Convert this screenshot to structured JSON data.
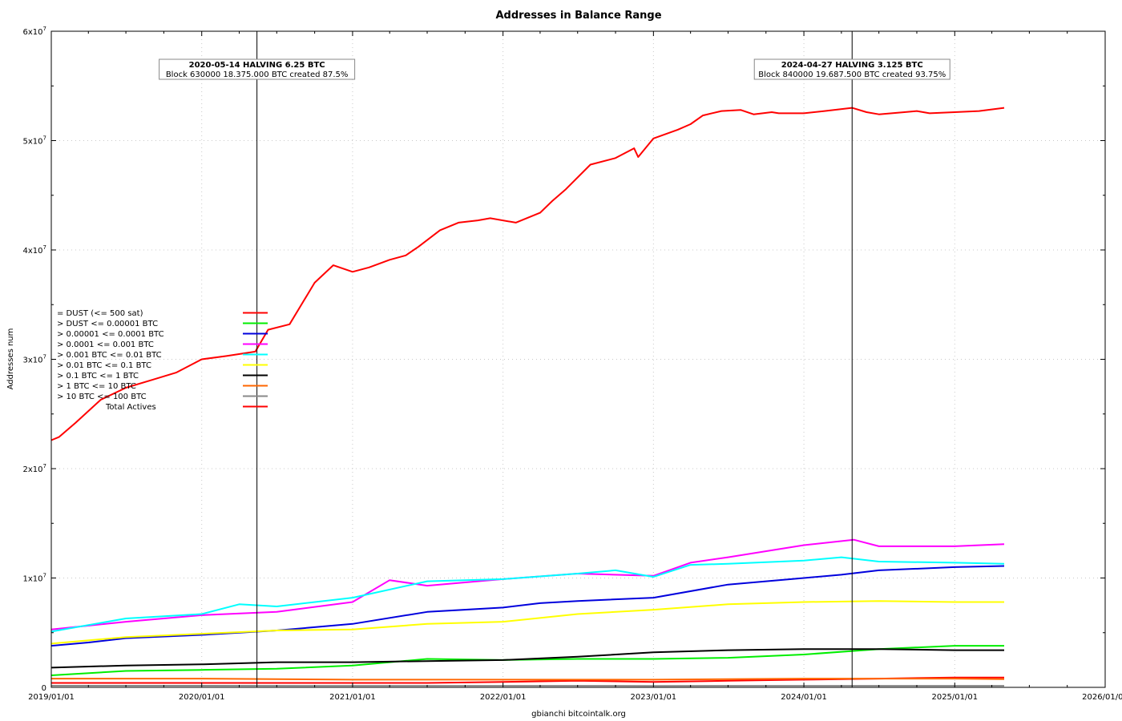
{
  "chart_data": {
    "type": "line",
    "title": "Addresses in Balance Range",
    "xlabel": "gbianchi bitcointalk.org",
    "ylabel": "Addresses num",
    "xlim": [
      "2019-01-01",
      "2026-01-01"
    ],
    "ylim": [
      0,
      60000000
    ],
    "x_ticks": [
      "2019/01/01",
      "2020/01/01",
      "2021/01/01",
      "2022/01/01",
      "2023/01/01",
      "2024/01/01",
      "2025/01/01",
      "2026/01/01"
    ],
    "y_ticks": [
      {
        "value": 0,
        "label": "0"
      },
      {
        "value": 10000000,
        "label": "1x10",
        "exp": "7"
      },
      {
        "value": 20000000,
        "label": "2x10",
        "exp": "7"
      },
      {
        "value": 30000000,
        "label": "3x10",
        "exp": "7"
      },
      {
        "value": 40000000,
        "label": "4x10",
        "exp": "7"
      },
      {
        "value": 50000000,
        "label": "5x10",
        "exp": "7"
      },
      {
        "value": 60000000,
        "label": "6x10",
        "exp": "7"
      }
    ],
    "grid": true,
    "legend_position": "left",
    "annotations": [
      {
        "date": "2020-05-14",
        "line1": "2020-05-14 HALVING 6.25 BTC",
        "line2": "Block 630000 18.375.000 BTC created 87.5%"
      },
      {
        "date": "2024-04-27",
        "line1": "2024-04-27 HALVING 3.125 BTC",
        "line2": "Block 840000 19.687.500 BTC created 93.75%"
      }
    ],
    "series": [
      {
        "name": "= DUST (<= 500 sat)",
        "color": "#ff0000",
        "x": [
          "2019-01-01",
          "2019-07-01",
          "2020-01-01",
          "2020-07-01",
          "2021-01-01",
          "2021-07-01",
          "2022-01-01",
          "2022-07-01",
          "2023-01-01",
          "2023-07-01",
          "2024-01-01",
          "2024-07-01",
          "2025-01-01",
          "2025-05-01"
        ],
        "y": [
          400000,
          400000,
          400000,
          400000,
          400000,
          400000,
          500000,
          600000,
          500000,
          600000,
          700000,
          800000,
          900000,
          900000
        ]
      },
      {
        "name": "> DUST <= 0.00001 BTC",
        "color": "#00ee00",
        "x": [
          "2019-01-01",
          "2019-07-01",
          "2020-01-01",
          "2020-07-01",
          "2021-01-01",
          "2021-07-01",
          "2022-01-01",
          "2022-07-01",
          "2023-01-01",
          "2023-07-01",
          "2024-01-01",
          "2024-07-01",
          "2025-01-01",
          "2025-05-01"
        ],
        "y": [
          1100000,
          1500000,
          1600000,
          1700000,
          2000000,
          2600000,
          2500000,
          2600000,
          2600000,
          2700000,
          3000000,
          3500000,
          3800000,
          3800000
        ]
      },
      {
        "name": "> 0.00001 <= 0.0001 BTC",
        "color": "#0000dd",
        "x": [
          "2019-01-01",
          "2019-04-01",
          "2019-07-01",
          "2020-01-01",
          "2020-07-01",
          "2021-01-01",
          "2021-07-01",
          "2022-01-01",
          "2022-04-01",
          "2022-07-01",
          "2023-01-01",
          "2023-07-01",
          "2024-01-01",
          "2024-04-01",
          "2024-07-01",
          "2025-01-01",
          "2025-05-01"
        ],
        "y": [
          3800000,
          4100000,
          4500000,
          4800000,
          5200000,
          5800000,
          6900000,
          7300000,
          7700000,
          7900000,
          8200000,
          9400000,
          10000000,
          10300000,
          10700000,
          11000000,
          11100000
        ]
      },
      {
        "name": "> 0.0001 <= 0.001 BTC",
        "color": "#ff00ff",
        "x": [
          "2019-01-01",
          "2019-07-01",
          "2020-01-01",
          "2020-07-01",
          "2021-01-01",
          "2021-04-01",
          "2021-07-01",
          "2022-01-01",
          "2022-07-01",
          "2023-01-01",
          "2023-04-01",
          "2023-07-01",
          "2024-01-01",
          "2024-05-01",
          "2024-07-01",
          "2025-01-01",
          "2025-05-01"
        ],
        "y": [
          5300000,
          6000000,
          6600000,
          6900000,
          7800000,
          9800000,
          9300000,
          9900000,
          10400000,
          10200000,
          11400000,
          11900000,
          13000000,
          13500000,
          12900000,
          12900000,
          13100000
        ]
      },
      {
        "name": "> 0.001 BTC <= 0.01 BTC",
        "color": "#00ffff",
        "x": [
          "2019-01-01",
          "2019-07-01",
          "2020-01-01",
          "2020-04-01",
          "2020-07-01",
          "2021-01-01",
          "2021-07-01",
          "2022-01-01",
          "2022-07-01",
          "2022-10-01",
          "2023-01-01",
          "2023-04-01",
          "2023-07-01",
          "2024-01-01",
          "2024-04-01",
          "2024-07-01",
          "2025-01-01",
          "2025-05-01"
        ],
        "y": [
          5100000,
          6300000,
          6700000,
          7600000,
          7400000,
          8200000,
          9700000,
          9900000,
          10400000,
          10700000,
          10100000,
          11200000,
          11300000,
          11600000,
          11900000,
          11500000,
          11400000,
          11300000
        ]
      },
      {
        "name": "> 0.01 BTC <= 0.1 BTC",
        "color": "#ffff00",
        "x": [
          "2019-01-01",
          "2019-07-01",
          "2020-01-01",
          "2020-07-01",
          "2021-01-01",
          "2021-07-01",
          "2022-01-01",
          "2022-07-01",
          "2023-01-01",
          "2023-07-01",
          "2024-01-01",
          "2024-07-01",
          "2025-01-01",
          "2025-05-01"
        ],
        "y": [
          4000000,
          4600000,
          4900000,
          5200000,
          5300000,
          5800000,
          6000000,
          6700000,
          7100000,
          7600000,
          7800000,
          7900000,
          7800000,
          7800000
        ]
      },
      {
        "name": "> 0.1 BTC <= 1 BTC",
        "color": "#000000",
        "x": [
          "2019-01-01",
          "2019-07-01",
          "2020-01-01",
          "2020-07-01",
          "2021-01-01",
          "2021-07-01",
          "2022-01-01",
          "2022-07-01",
          "2023-01-01",
          "2023-07-01",
          "2024-01-01",
          "2024-07-01",
          "2025-01-01",
          "2025-05-01"
        ],
        "y": [
          1800000,
          2000000,
          2100000,
          2300000,
          2300000,
          2400000,
          2500000,
          2800000,
          3200000,
          3400000,
          3500000,
          3500000,
          3400000,
          3400000
        ]
      },
      {
        "name": "> 1 BTC <= 10 BTC",
        "color": "#ff6600",
        "x": [
          "2019-01-01",
          "2020-01-01",
          "2021-01-01",
          "2022-01-01",
          "2023-01-01",
          "2024-01-01",
          "2025-01-01",
          "2025-05-01"
        ],
        "y": [
          800000,
          800000,
          700000,
          700000,
          700000,
          800000,
          800000,
          750000
        ]
      },
      {
        "name": "> 10 BTC <= 100 BTC",
        "color": "#888888",
        "x": [
          "2019-01-01",
          "2020-01-01",
          "2021-01-01",
          "2022-01-01",
          "2023-01-01",
          "2024-01-01",
          "2025-01-01",
          "2025-05-01"
        ],
        "y": [
          150000,
          150000,
          140000,
          140000,
          130000,
          140000,
          140000,
          140000
        ]
      },
      {
        "name": "Total Actives",
        "color": "#ff0000",
        "x": [
          "2019-01-01",
          "2019-01-20",
          "2019-03-01",
          "2019-05-01",
          "2019-07-01",
          "2019-09-01",
          "2019-11-01",
          "2020-01-01",
          "2020-03-01",
          "2020-05-10",
          "2020-06-10",
          "2020-08-01",
          "2020-10-01",
          "2020-11-15",
          "2021-01-01",
          "2021-02-10",
          "2021-04-01",
          "2021-05-10",
          "2021-06-10",
          "2021-08-01",
          "2021-09-15",
          "2021-11-01",
          "2021-12-01",
          "2022-02-01",
          "2022-04-01",
          "2022-05-01",
          "2022-06-01",
          "2022-08-01",
          "2022-10-01",
          "2022-11-15",
          "2022-11-25",
          "2023-01-01",
          "2023-03-01",
          "2023-04-01",
          "2023-05-01",
          "2023-06-15",
          "2023-08-01",
          "2023-09-01",
          "2023-10-15",
          "2023-11-01",
          "2024-01-01",
          "2024-02-20",
          "2024-04-27",
          "2024-06-01",
          "2024-07-01",
          "2024-09-01",
          "2024-10-01",
          "2024-11-01",
          "2025-01-01",
          "2025-03-01",
          "2025-05-01"
        ],
        "y": [
          22600000,
          22900000,
          24200000,
          26300000,
          27400000,
          28100000,
          28800000,
          30000000,
          30300000,
          30700000,
          32700000,
          33200000,
          37000000,
          38600000,
          38000000,
          38400000,
          39100000,
          39500000,
          40300000,
          41800000,
          42500000,
          42700000,
          42900000,
          42500000,
          43400000,
          44500000,
          45500000,
          47800000,
          48400000,
          49300000,
          48500000,
          50200000,
          51000000,
          51500000,
          52300000,
          52700000,
          52800000,
          52400000,
          52600000,
          52500000,
          52500000,
          52700000,
          53000000,
          52600000,
          52400000,
          52600000,
          52700000,
          52500000,
          52600000,
          52700000,
          53000000
        ]
      }
    ]
  }
}
